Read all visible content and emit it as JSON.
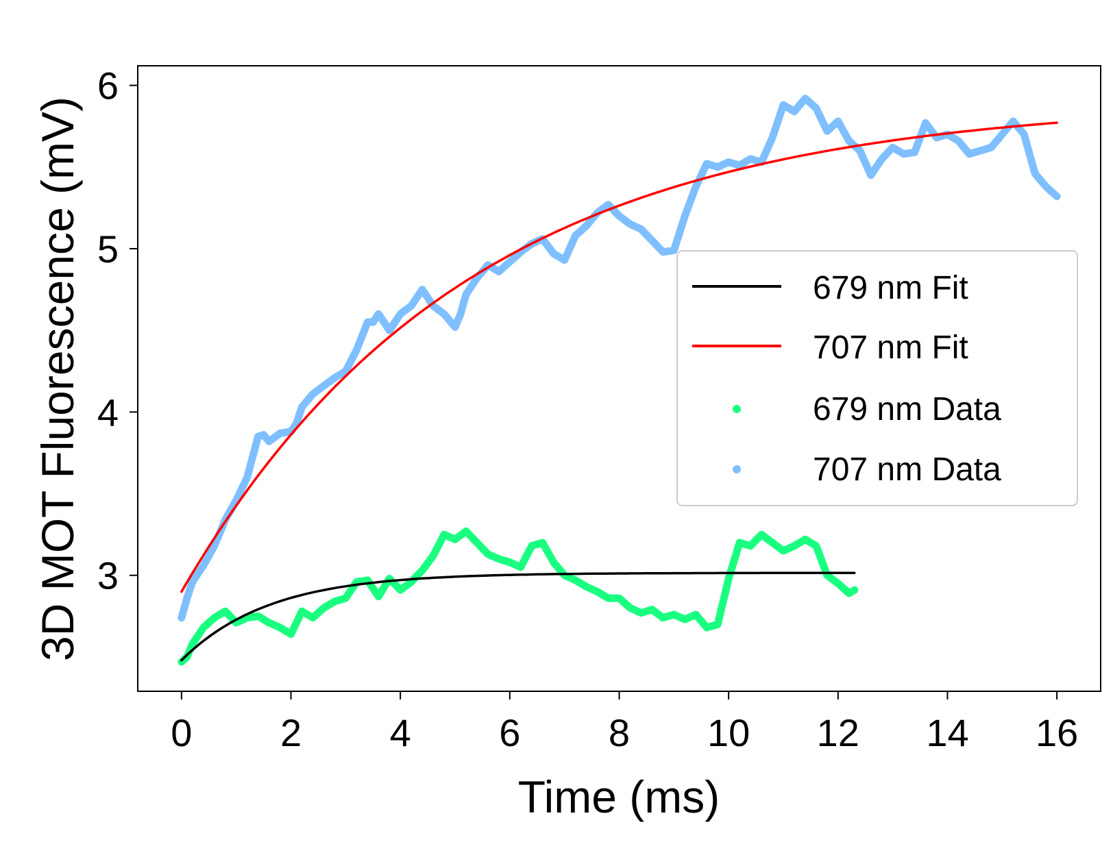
{
  "chart_data": {
    "type": "line",
    "xlabel": "Time (ms)",
    "ylabel": "3D MOT Fluorescence (mV)",
    "xlim": [
      -0.8,
      16.8
    ],
    "ylim": [
      2.29,
      6.12
    ],
    "x_ticks": [
      0,
      2,
      4,
      6,
      8,
      10,
      12,
      14,
      16
    ],
    "y_ticks": [
      3,
      4,
      5,
      6
    ],
    "grid": false,
    "legend": {
      "position": "center-right",
      "entries": [
        {
          "label": "679 nm Fit",
          "kind": "line",
          "color": "#000000"
        },
        {
          "label": "707 nm Fit",
          "kind": "line",
          "color": "#ff0000"
        },
        {
          "label": "679 nm Data",
          "kind": "marker",
          "color": "#1aff80"
        },
        {
          "label": "707 nm Data",
          "kind": "marker",
          "color": "#7fbfff"
        }
      ]
    },
    "series": [
      {
        "name": "707 nm Data",
        "kind": "data",
        "color": "#7fbfff",
        "x": [
          0,
          0.1,
          0.2,
          0.4,
          0.6,
          0.8,
          1.0,
          1.2,
          1.4,
          1.5,
          1.6,
          1.8,
          2.0,
          2.1,
          2.2,
          2.4,
          2.6,
          2.8,
          3.0,
          3.2,
          3.4,
          3.5,
          3.6,
          3.8,
          4.0,
          4.2,
          4.4,
          4.6,
          4.8,
          5.0,
          5.1,
          5.2,
          5.4,
          5.6,
          5.8,
          6.0,
          6.2,
          6.4,
          6.6,
          6.8,
          7.0,
          7.2,
          7.4,
          7.6,
          7.8,
          8.0,
          8.2,
          8.4,
          8.6,
          8.8,
          9.0,
          9.2,
          9.4,
          9.6,
          9.8,
          10.0,
          10.2,
          10.4,
          10.6,
          10.8,
          11.0,
          11.2,
          11.4,
          11.6,
          11.8,
          12.0,
          12.2,
          12.4,
          12.6,
          12.8,
          13.0,
          13.2,
          13.4,
          13.6,
          13.8,
          14.0,
          14.2,
          14.4,
          14.6,
          14.8,
          15.0,
          15.2,
          15.4,
          15.6,
          15.8,
          16.0
        ],
        "y": [
          2.74,
          2.86,
          2.96,
          3.06,
          3.18,
          3.34,
          3.46,
          3.6,
          3.85,
          3.86,
          3.82,
          3.87,
          3.88,
          3.93,
          4.03,
          4.11,
          4.16,
          4.21,
          4.25,
          4.38,
          4.55,
          4.55,
          4.6,
          4.5,
          4.6,
          4.65,
          4.75,
          4.65,
          4.6,
          4.52,
          4.6,
          4.72,
          4.82,
          4.9,
          4.86,
          4.92,
          4.98,
          5.03,
          5.06,
          4.97,
          4.93,
          5.08,
          5.14,
          5.22,
          5.27,
          5.2,
          5.15,
          5.12,
          5.05,
          4.98,
          4.99,
          5.2,
          5.38,
          5.52,
          5.5,
          5.53,
          5.51,
          5.55,
          5.53,
          5.68,
          5.88,
          5.84,
          5.92,
          5.86,
          5.72,
          5.78,
          5.66,
          5.6,
          5.45,
          5.55,
          5.62,
          5.58,
          5.59,
          5.77,
          5.68,
          5.7,
          5.66,
          5.58,
          5.6,
          5.62,
          5.7,
          5.78,
          5.7,
          5.46,
          5.38,
          5.32
        ]
      },
      {
        "name": "679 nm Data",
        "kind": "data",
        "color": "#1aff80",
        "x": [
          0,
          0.1,
          0.2,
          0.4,
          0.6,
          0.8,
          1.0,
          1.2,
          1.4,
          1.6,
          1.8,
          2.0,
          2.2,
          2.4,
          2.6,
          2.8,
          3.0,
          3.2,
          3.4,
          3.6,
          3.8,
          4.0,
          4.2,
          4.4,
          4.6,
          4.8,
          5.0,
          5.2,
          5.4,
          5.6,
          5.8,
          6.0,
          6.2,
          6.4,
          6.6,
          6.8,
          7.0,
          7.2,
          7.4,
          7.6,
          7.8,
          8.0,
          8.2,
          8.4,
          8.6,
          8.8,
          9.0,
          9.2,
          9.4,
          9.6,
          9.8,
          10.0,
          10.2,
          10.4,
          10.6,
          10.8,
          11.0,
          11.2,
          11.4,
          11.6,
          11.8,
          12.0,
          12.2,
          12.3
        ],
        "y": [
          2.47,
          2.5,
          2.58,
          2.68,
          2.74,
          2.78,
          2.71,
          2.74,
          2.75,
          2.71,
          2.68,
          2.64,
          2.78,
          2.74,
          2.8,
          2.84,
          2.86,
          2.96,
          2.97,
          2.87,
          2.98,
          2.91,
          2.96,
          3.03,
          3.12,
          3.25,
          3.22,
          3.27,
          3.2,
          3.13,
          3.1,
          3.08,
          3.05,
          3.18,
          3.2,
          3.08,
          3.0,
          2.97,
          2.93,
          2.9,
          2.86,
          2.86,
          2.8,
          2.77,
          2.79,
          2.74,
          2.76,
          2.73,
          2.76,
          2.68,
          2.7,
          2.98,
          3.2,
          3.18,
          3.25,
          3.2,
          3.15,
          3.18,
          3.22,
          3.18,
          3.0,
          2.95,
          2.89,
          2.91
        ]
      },
      {
        "name": "707 nm Fit",
        "kind": "fit",
        "color": "#ff0000",
        "model": {
          "offset": 5.91,
          "amplitude": 3.01,
          "tau": 5.2
        },
        "x_range": [
          0,
          16
        ]
      },
      {
        "name": "679 nm Fit",
        "kind": "fit",
        "color": "#000000",
        "model": {
          "offset": 3.015,
          "amplitude": 0.535,
          "tau": 1.6
        },
        "x_range": [
          0,
          12.3
        ]
      }
    ]
  }
}
